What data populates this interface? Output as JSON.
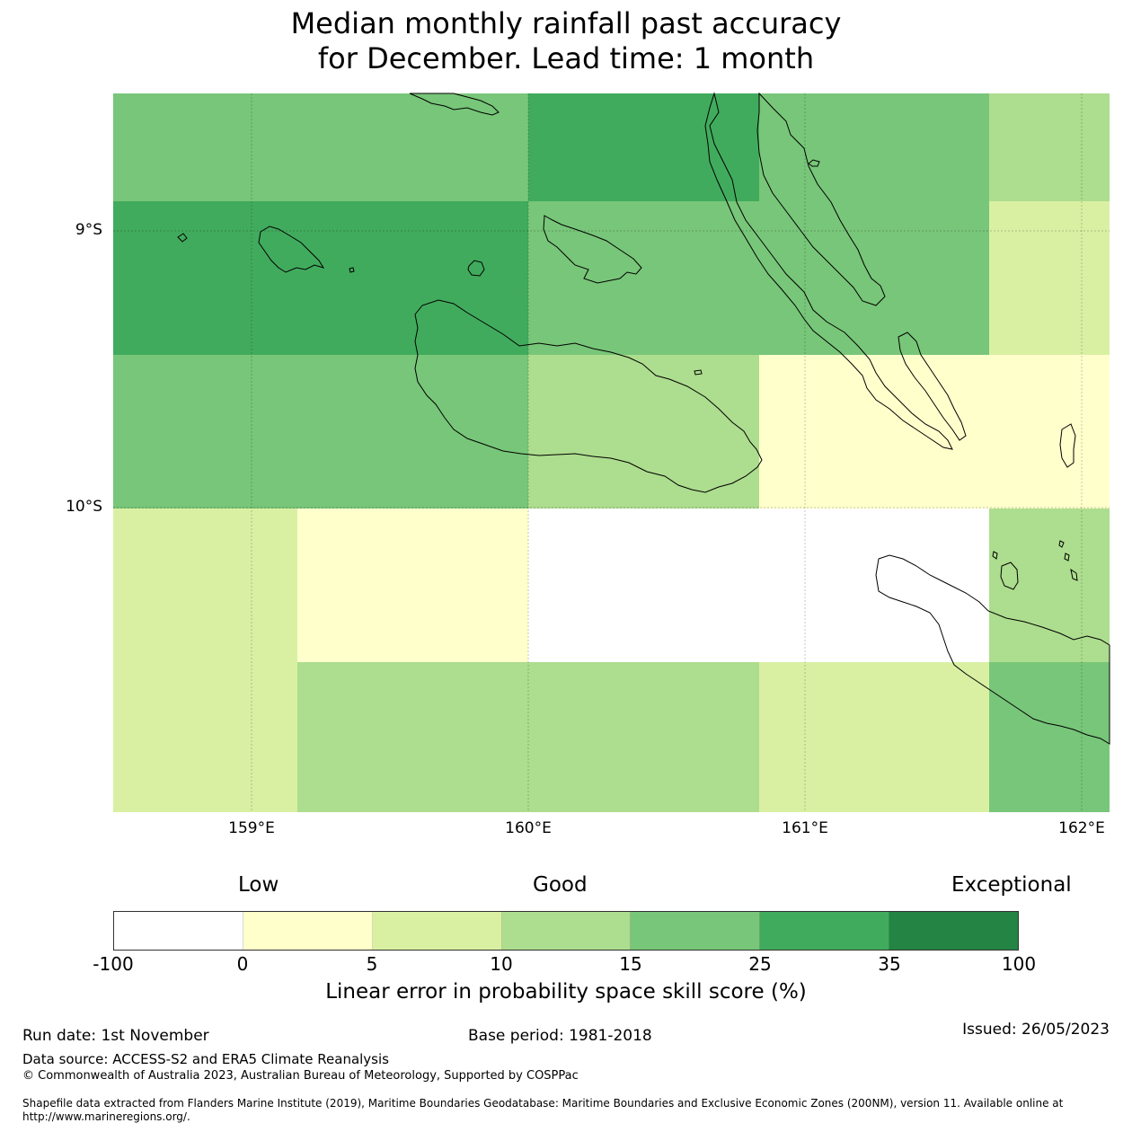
{
  "title": {
    "line1": "Median monthly rainfall past accuracy",
    "line2": "for December. Lead time: 1 month"
  },
  "map": {
    "lat_labels": [
      "9°S",
      "10°S"
    ],
    "lon_labels": [
      "159°E",
      "160°E",
      "161°E",
      "162°E"
    ],
    "grid_cells": [
      {
        "row": 0,
        "col_start": 0,
        "col_end": 3,
        "skill": 15
      },
      {
        "row": 0,
        "col_start": 3,
        "col_end": 4,
        "skill": 25
      },
      {
        "row": 0,
        "col_start": 4,
        "col_end": 5,
        "skill": 15
      },
      {
        "row": 0,
        "col_start": 5,
        "col_end": 6,
        "skill": 10
      },
      {
        "row": 1,
        "col_start": 0,
        "col_end": 3,
        "skill": 25
      },
      {
        "row": 1,
        "col_start": 3,
        "col_end": 5,
        "skill": 15
      },
      {
        "row": 1,
        "col_start": 5,
        "col_end": 6,
        "skill": 5
      },
      {
        "row": 2,
        "col_start": 0,
        "col_end": 3,
        "skill": 15
      },
      {
        "row": 2,
        "col_start": 3,
        "col_end": 4,
        "skill": 10
      },
      {
        "row": 2,
        "col_start": 4,
        "col_end": 6,
        "skill": 0
      },
      {
        "row": 3,
        "col_start": 0,
        "col_end": 1,
        "skill": 5
      },
      {
        "row": 3,
        "col_start": 1,
        "col_end": 3,
        "skill": 0
      },
      {
        "row": 3,
        "col_start": 3,
        "col_end": 5,
        "skill": -100
      },
      {
        "row": 3,
        "col_start": 5,
        "col_end": 6,
        "skill": 10
      },
      {
        "row": 4,
        "col_start": 0,
        "col_end": 1,
        "skill": 5
      },
      {
        "row": 4,
        "col_start": 1,
        "col_end": 4,
        "skill": 10
      },
      {
        "row": 4,
        "col_start": 4,
        "col_end": 5,
        "skill": 5
      },
      {
        "row": 4,
        "col_start": 5,
        "col_end": 6,
        "skill": 15
      }
    ]
  },
  "colorbar": {
    "categories": [
      "Low",
      "Good",
      "Exceptional"
    ],
    "ticks": [
      "-100",
      "0",
      "5",
      "10",
      "15",
      "25",
      "35",
      "100"
    ],
    "colors": [
      "#ffffff",
      "#ffffcc",
      "#d9f0a3",
      "#addd8e",
      "#78c679",
      "#41ab5d",
      "#238443"
    ],
    "label": "Linear error in probability space skill score (%)"
  },
  "footer": {
    "run_date": "Run date: 1st November",
    "base_period": "Base period: 1981-2018",
    "issued": "Issued: 26/05/2023",
    "data_source": "Data source: ACCESS-S2 and ERA5 Climate Reanalysis",
    "copyright": "© Commonwealth of Australia 2023, Australian Bureau of Meteorology, Supported by COSPPac",
    "shapefile": "Shapefile data extracted from Flanders Marine Institute (2019), Maritime Boundaries Geodatabase: Maritime Boundaries and Exclusive Economic Zones (200NM), version 11. Available online at http://www.marineregions.org/."
  }
}
